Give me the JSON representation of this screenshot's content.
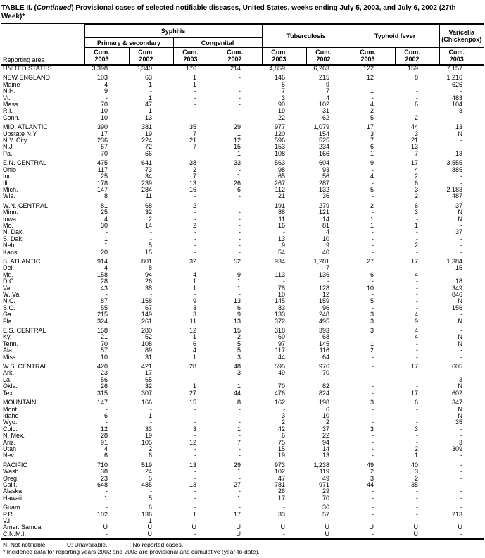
{
  "title": {
    "prefix": "TABLE II. (",
    "continued": "Continued",
    "rest": ") Provisional cases of selected notifiable diseases, United States, weeks ending July 5, 2003, and July 6, 2002 (27th Week)*"
  },
  "header": {
    "reporting_area": "Reporting area",
    "syphilis": "Syphilis",
    "primary_secondary": "Primary & secondary",
    "congenital": "Congenital",
    "tuberculosis": "Tuberculosis",
    "typhoid_fever": "Typhoid fever",
    "varicella_line1": "Varicella",
    "varicella_line2": "(Chickenpox)",
    "cum_label": "Cum.",
    "years": [
      "2003",
      "2002",
      "2003",
      "2002",
      "2003",
      "2002",
      "2003",
      "2002",
      "2003"
    ]
  },
  "row_groups": [
    {
      "rows": [
        {
          "area": "UNITED STATES",
          "values": [
            "3,398",
            "3,340",
            "176",
            "214",
            "4,859",
            "6,263",
            "122",
            "159",
            "7,157"
          ]
        }
      ]
    },
    {
      "rows": [
        {
          "area": "NEW ENGLAND",
          "values": [
            "103",
            "63",
            "1",
            "-",
            "146",
            "215",
            "12",
            "8",
            "1,216"
          ]
        },
        {
          "area": "Maine",
          "values": [
            "4",
            "1",
            "1",
            "-",
            "5",
            "9",
            "-",
            "-",
            "626"
          ]
        },
        {
          "area": "N.H.",
          "values": [
            "9",
            "-",
            "-",
            "-",
            "7",
            "7",
            "1",
            "-",
            "-"
          ]
        },
        {
          "area": "Vt.",
          "values": [
            "-",
            "1",
            "-",
            "-",
            "3",
            "4",
            "-",
            "-",
            "483"
          ]
        },
        {
          "area": "Mass.",
          "values": [
            "70",
            "47",
            "-",
            "-",
            "90",
            "102",
            "4",
            "6",
            "104"
          ]
        },
        {
          "area": "R.I.",
          "values": [
            "10",
            "1",
            "-",
            "-",
            "19",
            "31",
            "2",
            "-",
            "3"
          ]
        },
        {
          "area": "Conn.",
          "values": [
            "10",
            "13",
            "-",
            "-",
            "22",
            "62",
            "5",
            "2",
            "-"
          ]
        }
      ]
    },
    {
      "rows": [
        {
          "area": "MID. ATLANTIC",
          "values": [
            "390",
            "381",
            "35",
            "29",
            "977",
            "1,079",
            "17",
            "44",
            "13"
          ]
        },
        {
          "area": "Upstate N.Y.",
          "values": [
            "17",
            "19",
            "7",
            "1",
            "120",
            "154",
            "3",
            "3",
            "N"
          ]
        },
        {
          "area": "N.Y. City",
          "values": [
            "236",
            "224",
            "21",
            "12",
            "596",
            "525",
            "7",
            "21",
            "-"
          ]
        },
        {
          "area": "N.J.",
          "values": [
            "67",
            "72",
            "7",
            "15",
            "153",
            "234",
            "6",
            "13",
            "-"
          ]
        },
        {
          "area": "Pa.",
          "values": [
            "70",
            "66",
            "-",
            "1",
            "108",
            "166",
            "1",
            "7",
            "13"
          ]
        }
      ]
    },
    {
      "rows": [
        {
          "area": "E.N. CENTRAL",
          "values": [
            "475",
            "641",
            "38",
            "33",
            "563",
            "604",
            "9",
            "17",
            "3,555"
          ]
        },
        {
          "area": "Ohio",
          "values": [
            "117",
            "73",
            "2",
            "-",
            "98",
            "93",
            "-",
            "4",
            "885"
          ]
        },
        {
          "area": "Ind.",
          "values": [
            "25",
            "34",
            "7",
            "1",
            "65",
            "56",
            "4",
            "2",
            "-"
          ]
        },
        {
          "area": "Ill.",
          "values": [
            "178",
            "239",
            "13",
            "26",
            "267",
            "287",
            "-",
            "6",
            "-"
          ]
        },
        {
          "area": "Mich.",
          "values": [
            "147",
            "284",
            "16",
            "6",
            "112",
            "132",
            "5",
            "3",
            "2,183"
          ]
        },
        {
          "area": "Wis.",
          "values": [
            "8",
            "11",
            "-",
            "-",
            "21",
            "36",
            "-",
            "2",
            "487"
          ]
        }
      ]
    },
    {
      "rows": [
        {
          "area": "W.N. CENTRAL",
          "values": [
            "81",
            "68",
            "2",
            "-",
            "191",
            "279",
            "2",
            "6",
            "37"
          ]
        },
        {
          "area": "Minn.",
          "values": [
            "25",
            "32",
            "-",
            "-",
            "88",
            "121",
            "-",
            "3",
            "N"
          ]
        },
        {
          "area": "Iowa",
          "values": [
            "4",
            "2",
            "-",
            "-",
            "11",
            "14",
            "1",
            "-",
            "N"
          ]
        },
        {
          "area": "Mo.",
          "values": [
            "30",
            "14",
            "2",
            "-",
            "16",
            "81",
            "1",
            "1",
            "-"
          ]
        },
        {
          "area": "N. Dak.",
          "values": [
            "-",
            "-",
            "-",
            "-",
            "-",
            "4",
            "-",
            "-",
            "37"
          ]
        },
        {
          "area": "S. Dak.",
          "values": [
            "1",
            "-",
            "-",
            "-",
            "13",
            "10",
            "-",
            "-",
            "-"
          ]
        },
        {
          "area": "Nebr.",
          "values": [
            "1",
            "5",
            "-",
            "-",
            "9",
            "9",
            "-",
            "2",
            "-"
          ]
        },
        {
          "area": "Kans.",
          "values": [
            "20",
            "15",
            "-",
            "-",
            "54",
            "40",
            "-",
            "-",
            "-"
          ]
        }
      ]
    },
    {
      "rows": [
        {
          "area": "S. ATLANTIC",
          "values": [
            "914",
            "801",
            "32",
            "52",
            "934",
            "1,281",
            "27",
            "17",
            "1,384"
          ]
        },
        {
          "area": "Del.",
          "values": [
            "4",
            "8",
            "-",
            "-",
            "-",
            "7",
            "-",
            "-",
            "15"
          ]
        },
        {
          "area": "Md.",
          "values": [
            "158",
            "94",
            "4",
            "9",
            "113",
            "136",
            "6",
            "4",
            "-"
          ]
        },
        {
          "area": "D.C.",
          "values": [
            "28",
            "26",
            "1",
            "1",
            "-",
            "-",
            "-",
            "-",
            "18"
          ]
        },
        {
          "area": "Va.",
          "values": [
            "43",
            "38",
            "1",
            "1",
            "78",
            "128",
            "10",
            "-",
            "349"
          ]
        },
        {
          "area": "W. Va.",
          "values": [
            "-",
            "-",
            "-",
            "-",
            "10",
            "12",
            "-",
            "-",
            "846"
          ]
        },
        {
          "area": "N.C.",
          "values": [
            "87",
            "158",
            "9",
            "13",
            "145",
            "159",
            "5",
            "-",
            "N"
          ]
        },
        {
          "area": "S.C.",
          "values": [
            "55",
            "67",
            "3",
            "6",
            "83",
            "96",
            "-",
            "-",
            "156"
          ]
        },
        {
          "area": "Ga.",
          "values": [
            "215",
            "149",
            "3",
            "9",
            "133",
            "248",
            "3",
            "4",
            "-"
          ]
        },
        {
          "area": "Fla.",
          "values": [
            "324",
            "261",
            "11",
            "13",
            "372",
            "495",
            "3",
            "9",
            "N"
          ]
        }
      ]
    },
    {
      "rows": [
        {
          "area": "E.S. CENTRAL",
          "values": [
            "158",
            "280",
            "12",
            "15",
            "318",
            "393",
            "3",
            "4",
            "-"
          ]
        },
        {
          "area": "Ky.",
          "values": [
            "21",
            "52",
            "1",
            "2",
            "60",
            "68",
            "-",
            "4",
            "N"
          ]
        },
        {
          "area": "Tenn.",
          "values": [
            "70",
            "108",
            "6",
            "5",
            "97",
            "145",
            "1",
            "-",
            "N"
          ]
        },
        {
          "area": "Ala.",
          "values": [
            "57",
            "89",
            "4",
            "5",
            "117",
            "116",
            "2",
            "-",
            "-"
          ]
        },
        {
          "area": "Miss.",
          "values": [
            "10",
            "31",
            "1",
            "3",
            "44",
            "64",
            "-",
            "-",
            "-"
          ]
        }
      ]
    },
    {
      "rows": [
        {
          "area": "W.S. CENTRAL",
          "values": [
            "420",
            "421",
            "28",
            "48",
            "595",
            "976",
            "-",
            "17",
            "605"
          ]
        },
        {
          "area": "Ark.",
          "values": [
            "23",
            "17",
            "-",
            "3",
            "49",
            "70",
            "-",
            "-",
            "-"
          ]
        },
        {
          "area": "La.",
          "values": [
            "56",
            "65",
            "-",
            "-",
            "-",
            "-",
            "-",
            "-",
            "3"
          ]
        },
        {
          "area": "Okla.",
          "values": [
            "26",
            "32",
            "1",
            "1",
            "70",
            "82",
            "-",
            "-",
            "N"
          ]
        },
        {
          "area": "Tex.",
          "values": [
            "315",
            "307",
            "27",
            "44",
            "476",
            "824",
            "-",
            "17",
            "602"
          ]
        }
      ]
    },
    {
      "rows": [
        {
          "area": "MOUNTAIN",
          "values": [
            "147",
            "166",
            "15",
            "8",
            "162",
            "198",
            "3",
            "6",
            "347"
          ]
        },
        {
          "area": "Mont.",
          "values": [
            "-",
            "-",
            "-",
            "-",
            "-",
            "6",
            "-",
            "-",
            "N"
          ]
        },
        {
          "area": "Idaho",
          "values": [
            "6",
            "1",
            "-",
            "-",
            "3",
            "10",
            "-",
            "-",
            "N"
          ]
        },
        {
          "area": "Wyo.",
          "values": [
            "-",
            "-",
            "-",
            "-",
            "2",
            "2",
            "-",
            "-",
            "35"
          ]
        },
        {
          "area": "Colo.",
          "values": [
            "12",
            "33",
            "3",
            "1",
            "42",
            "37",
            "3",
            "3",
            "-"
          ]
        },
        {
          "area": "N. Mex.",
          "values": [
            "28",
            "19",
            "-",
            "-",
            "6",
            "22",
            "-",
            "-",
            "-"
          ]
        },
        {
          "area": "Ariz.",
          "values": [
            "91",
            "105",
            "12",
            "7",
            "75",
            "94",
            "-",
            "-",
            "3"
          ]
        },
        {
          "area": "Utah",
          "values": [
            "4",
            "2",
            "-",
            "-",
            "15",
            "14",
            "-",
            "2",
            "309"
          ]
        },
        {
          "area": "Nev.",
          "values": [
            "6",
            "6",
            "-",
            "-",
            "19",
            "13",
            "-",
            "1",
            "-"
          ]
        }
      ]
    },
    {
      "rows": [
        {
          "area": "PACIFIC",
          "values": [
            "710",
            "519",
            "13",
            "29",
            "973",
            "1,238",
            "49",
            "40",
            "-"
          ]
        },
        {
          "area": "Wash.",
          "values": [
            "38",
            "24",
            "-",
            "1",
            "102",
            "119",
            "2",
            "3",
            "-"
          ]
        },
        {
          "area": "Oreg.",
          "values": [
            "23",
            "5",
            "-",
            "-",
            "47",
            "49",
            "3",
            "2",
            "-"
          ]
        },
        {
          "area": "Calif.",
          "values": [
            "648",
            "485",
            "13",
            "27",
            "781",
            "971",
            "44",
            "35",
            "-"
          ]
        },
        {
          "area": "Alaska",
          "values": [
            "-",
            "-",
            "-",
            "-",
            "26",
            "29",
            "-",
            "-",
            "-"
          ]
        },
        {
          "area": "Hawaii",
          "values": [
            "1",
            "5",
            "-",
            "1",
            "17",
            "70",
            "-",
            "-",
            "-"
          ]
        }
      ]
    },
    {
      "rows": [
        {
          "area": "Guam",
          "values": [
            "-",
            "6",
            "-",
            "-",
            "-",
            "36",
            "-",
            "-",
            "-"
          ]
        },
        {
          "area": "P.R.",
          "values": [
            "102",
            "136",
            "1",
            "17",
            "33",
            "57",
            "-",
            "-",
            "213"
          ]
        },
        {
          "area": "V.I.",
          "values": [
            "-",
            "1",
            "-",
            "-",
            "-",
            "-",
            "-",
            "-",
            "-"
          ]
        },
        {
          "area": "Amer. Samoa",
          "values": [
            "U",
            "U",
            "U",
            "U",
            "U",
            "U",
            "U",
            "U",
            "U"
          ]
        },
        {
          "area": "C.N.M.I.",
          "values": [
            "-",
            "U",
            "-",
            "U",
            "-",
            "U",
            "-",
            "U",
            "-"
          ]
        }
      ]
    }
  ],
  "footnotes": {
    "n": "N: Not notifiable.",
    "u": "U: Unavailable.",
    "dash": "- : No reported cases.",
    "asterisk": "* Incidence data for reporting years 2002 and 2003 are provisional and cumulative (year-to-date)."
  }
}
